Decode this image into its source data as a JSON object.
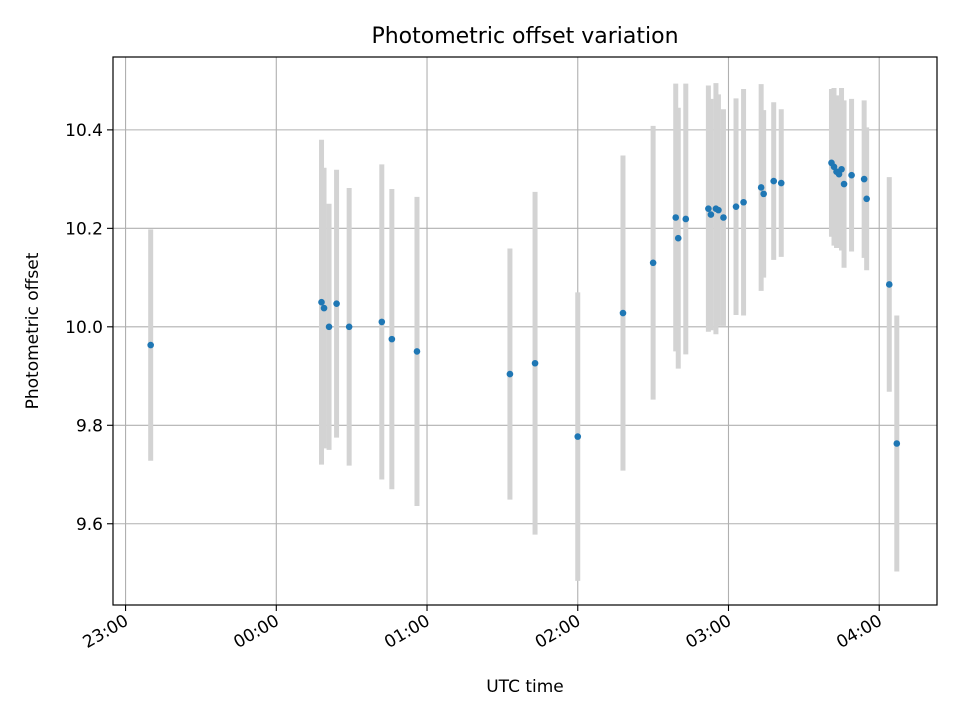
{
  "chart_data": {
    "type": "scatter",
    "title": "Photometric offset variation",
    "xlabel": "UTC time",
    "ylabel": "Photometric offset",
    "x_axis_format": "time-of-day",
    "xlim": [
      "22:55",
      "04:23"
    ],
    "ylim": [
      9.435,
      10.548
    ],
    "grid": true,
    "x_ticks": [
      "23:00",
      "00:00",
      "01:00",
      "02:00",
      "03:00",
      "04:00"
    ],
    "y_ticks": [
      "9.6",
      "9.8",
      "10.0",
      "10.2",
      "10.4"
    ],
    "colors": {
      "points": "#1f77b4",
      "errorbars": "#d3d3d3",
      "grid": "#b0b0b0"
    },
    "points": [
      {
        "x": "23:10",
        "y": 9.963,
        "err_low": 0.235,
        "err_high": 0.235
      },
      {
        "x": "00:18",
        "y": 10.05,
        "err_low": 0.33,
        "err_high": 0.33
      },
      {
        "x": "00:19",
        "y": 10.038,
        "err_low": 0.285,
        "err_high": 0.285
      },
      {
        "x": "00:21",
        "y": 10.0,
        "err_low": 0.25,
        "err_high": 0.25
      },
      {
        "x": "00:24",
        "y": 10.047,
        "err_low": 0.272,
        "err_high": 0.272
      },
      {
        "x": "00:29",
        "y": 10.0,
        "err_low": 0.282,
        "err_high": 0.282
      },
      {
        "x": "00:42",
        "y": 10.01,
        "err_low": 0.32,
        "err_high": 0.32
      },
      {
        "x": "00:46",
        "y": 9.975,
        "err_low": 0.305,
        "err_high": 0.305
      },
      {
        "x": "00:56",
        "y": 9.95,
        "err_low": 0.314,
        "err_high": 0.314
      },
      {
        "x": "01:33",
        "y": 9.904,
        "err_low": 0.255,
        "err_high": 0.255
      },
      {
        "x": "01:43",
        "y": 9.926,
        "err_low": 0.348,
        "err_high": 0.348
      },
      {
        "x": "02:00",
        "y": 9.777,
        "err_low": 0.293,
        "err_high": 0.293
      },
      {
        "x": "02:18",
        "y": 10.028,
        "err_low": 0.32,
        "err_high": 0.32
      },
      {
        "x": "02:30",
        "y": 10.13,
        "err_low": 0.278,
        "err_high": 0.278
      },
      {
        "x": "02:39",
        "y": 10.222,
        "err_low": 0.272,
        "err_high": 0.272
      },
      {
        "x": "02:40",
        "y": 10.18,
        "err_low": 0.265,
        "err_high": 0.265
      },
      {
        "x": "02:43",
        "y": 10.219,
        "err_low": 0.275,
        "err_high": 0.275
      },
      {
        "x": "02:52",
        "y": 10.24,
        "err_low": 0.25,
        "err_high": 0.25
      },
      {
        "x": "02:53",
        "y": 10.228,
        "err_low": 0.235,
        "err_high": 0.235
      },
      {
        "x": "02:55",
        "y": 10.24,
        "err_low": 0.255,
        "err_high": 0.255
      },
      {
        "x": "02:56",
        "y": 10.237,
        "err_low": 0.235,
        "err_high": 0.235
      },
      {
        "x": "02:58",
        "y": 10.222,
        "err_low": 0.22,
        "err_high": 0.22
      },
      {
        "x": "03:03",
        "y": 10.244,
        "err_low": 0.22,
        "err_high": 0.22
      },
      {
        "x": "03:06",
        "y": 10.253,
        "err_low": 0.23,
        "err_high": 0.23
      },
      {
        "x": "03:13",
        "y": 10.283,
        "err_low": 0.21,
        "err_high": 0.21
      },
      {
        "x": "03:14",
        "y": 10.27,
        "err_low": 0.17,
        "err_high": 0.17
      },
      {
        "x": "03:18",
        "y": 10.296,
        "err_low": 0.16,
        "err_high": 0.16
      },
      {
        "x": "03:21",
        "y": 10.292,
        "err_low": 0.15,
        "err_high": 0.15
      },
      {
        "x": "03:41",
        "y": 10.333,
        "err_low": 0.15,
        "err_high": 0.15
      },
      {
        "x": "03:42",
        "y": 10.325,
        "err_low": 0.16,
        "err_high": 0.16
      },
      {
        "x": "03:43",
        "y": 10.315,
        "err_low": 0.155,
        "err_high": 0.155
      },
      {
        "x": "03:44",
        "y": 10.31,
        "err_low": 0.15,
        "err_high": 0.15
      },
      {
        "x": "03:45",
        "y": 10.32,
        "err_low": 0.165,
        "err_high": 0.165
      },
      {
        "x": "03:46",
        "y": 10.29,
        "err_low": 0.17,
        "err_high": 0.17
      },
      {
        "x": "03:49",
        "y": 10.308,
        "err_low": 0.155,
        "err_high": 0.155
      },
      {
        "x": "03:54",
        "y": 10.3,
        "err_low": 0.16,
        "err_high": 0.16
      },
      {
        "x": "03:55",
        "y": 10.26,
        "err_low": 0.145,
        "err_high": 0.145
      },
      {
        "x": "04:04",
        "y": 10.086,
        "err_low": 0.218,
        "err_high": 0.218
      },
      {
        "x": "04:07",
        "y": 9.763,
        "err_low": 0.26,
        "err_high": 0.26
      }
    ]
  }
}
